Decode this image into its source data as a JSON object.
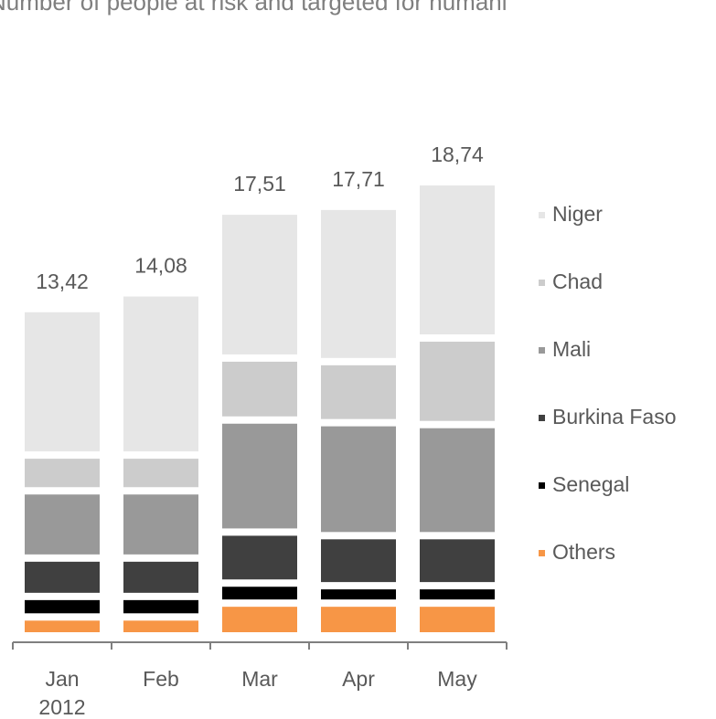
{
  "chart_data": {
    "type": "stacked_bar",
    "title": "Number of people at risk and targeted for humani",
    "categories": [
      "Jan",
      "Feb",
      "Mar",
      "Apr",
      "May"
    ],
    "year_label": "2012",
    "series": [
      {
        "name": "Others",
        "color": "#f79646",
        "values": [
          0.64,
          0.64,
          1.22,
          1.22,
          1.22
        ]
      },
      {
        "name": "Senegal",
        "color": "#000000",
        "values": [
          0.86,
          0.86,
          0.84,
          0.73,
          0.73
        ]
      },
      {
        "name": "Burkina Faso",
        "color": "#404040",
        "values": [
          1.61,
          1.61,
          2.14,
          2.1,
          2.1
        ]
      },
      {
        "name": "Mali",
        "color": "#999999",
        "values": [
          2.82,
          2.82,
          4.7,
          4.74,
          4.66
        ]
      },
      {
        "name": "Chad",
        "color": "#cccccc",
        "values": [
          1.5,
          1.5,
          2.6,
          2.56,
          3.63
        ]
      },
      {
        "name": "Niger",
        "color": "#e6e6e6",
        "values": [
          5.99,
          6.65,
          6.01,
          6.36,
          6.4
        ]
      }
    ],
    "totals": [
      13.42,
      14.08,
      17.51,
      17.71,
      18.74
    ],
    "total_labels": [
      "13,42",
      "14,08",
      "17,51",
      "17,71",
      "18,74"
    ],
    "legend": "right"
  }
}
